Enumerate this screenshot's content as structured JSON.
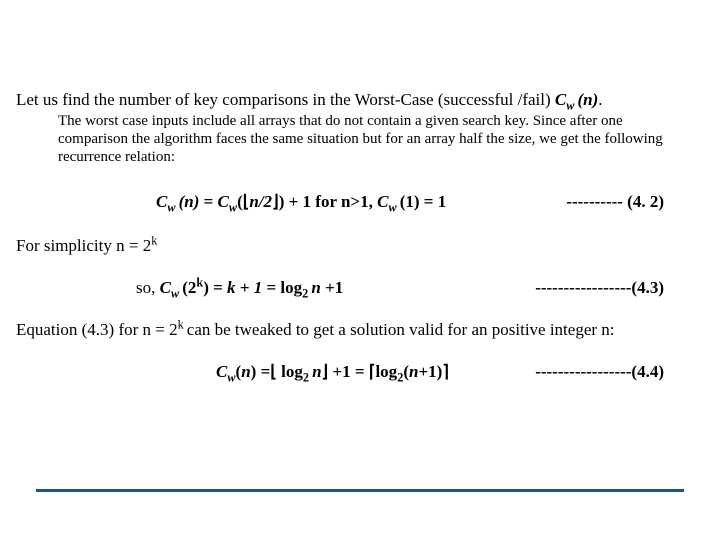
{
  "accent_color": "#1f4e9c",
  "para1_prefix": "Let us find the number of key comparisons in the Worst-Case (successful /fail) ",
  "para1_cw": "C",
  "para1_sub": "w ",
  "para1_n": "(n)",
  "para1_dot": ".",
  "indent_text": "The worst case inputs include all arrays that do not contain a given search key. Since after one comparison the algorithm faces the same situation but for an array half the size, we get the following recurrence relation:",
  "eq42_lhs_c": "C",
  "eq42_sub_w": "w ",
  "eq42_n": "(n)",
  "eq42_eq": " = ",
  "eq42_c2": "C",
  "eq42_sub_w2": "w",
  "eq42_open": "(",
  "eq42_lfloor": "⌊",
  "eq42_halfn": "n/2",
  "eq42_rfloor": "⌋",
  "eq42_close": ")",
  "eq42_plus": " + 1 for n>1,  ",
  "eq42_c3": "C",
  "eq42_sub_w3": "w ",
  "eq42_one": "(1) = 1",
  "eq42_tag": "---------- (4. 2)",
  "simpl": "For simplicity n =  2",
  "simpl_exp": "k",
  "eq43_so": "so, ",
  "eq43_c": "C",
  "eq43_sub_w": "w ",
  "eq43_lparen": "(2",
  "eq43_k": "k",
  "eq43_rparen": ") = ",
  "eq43_kplus": "k + 1",
  "eq43_eq2": " = log",
  "eq43_sub2_a": "2 ",
  "eq43_n": "n ",
  "eq43_plus1": "+1",
  "eq43_tag": "-----------------(4.3)",
  "body2a": "Equation (4.3)  for n = 2",
  "body2_exp": "k ",
  "body2b": "can be tweaked to get a solution valid for an positive integer n:",
  "eq44_c": "C",
  "eq44_sub_w": "w",
  "eq44_open": "(",
  "eq44_n": "n",
  "eq44_close": ")",
  "eq44_eq": " =",
  "eq44_lfloor": "⌊ ",
  "eq44_log": "log",
  "eq44_sub2_a": "2 ",
  "eq44_n2": "n",
  "eq44_rfloor": "⌋",
  "eq44_plus": " +1 = ",
  "eq44_lceil": "⌈",
  "eq44_log2": "log",
  "eq44_sub2_b": "2",
  "eq44_nparen": "(",
  "eq44_n3": "n",
  "eq44_plus1b": "+1)",
  "eq44_rceil": "⌉",
  "eq44_tag": "-----------------(4.4)"
}
